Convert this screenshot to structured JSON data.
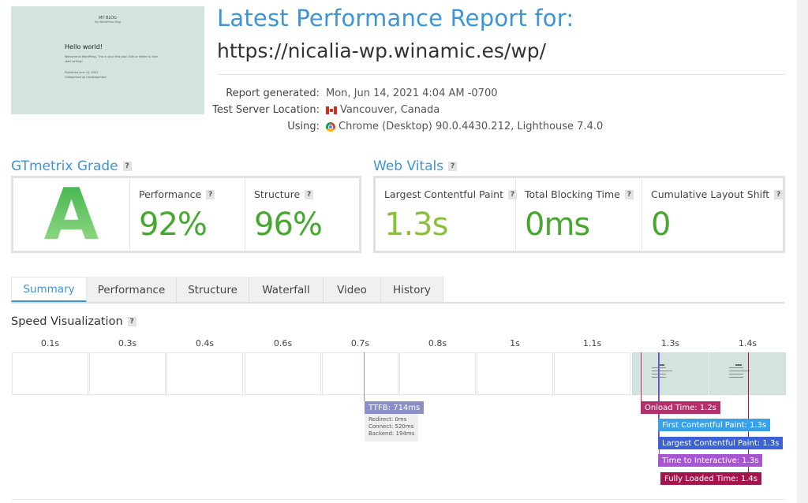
{
  "thumbnail": {
    "blog_title": "MY BLOG",
    "blog_tagline": "My WordPress Blog",
    "post_title": "Hello world!",
    "post_line_1": "Welcome to WordPress. This is your first post. Edit or delete it, then",
    "post_line_2": "start writing!",
    "post_meta_1": "Published June 14, 2021",
    "post_meta_2": "Categorized as Uncategorized"
  },
  "header": {
    "title": "Latest Performance Report for:",
    "url": "https://nicalia-wp.winamic.es/wp/"
  },
  "report": {
    "generated_label": "Report generated:",
    "generated_value": "Mon, Jun 14, 2021 4:04 AM -0700",
    "location_label": "Test Server Location:",
    "location_value": "Vancouver, Canada",
    "location_icon": "canada-flag-icon",
    "using_label": "Using:",
    "using_value": "Chrome (Desktop) 90.0.4430.212, Lighthouse 7.4.0",
    "using_icon": "chrome-icon"
  },
  "grade": {
    "section_title": "GTmetrix Grade",
    "letter": "A",
    "performance_label": "Performance",
    "performance_value": "92%",
    "structure_label": "Structure",
    "structure_value": "96%",
    "value_color": "#46a82f"
  },
  "vitals": {
    "section_title": "Web Vitals",
    "lcp_label": "Largest Contentful Paint",
    "lcp_value": "1.3s",
    "lcp_color": "#8cc03b",
    "tbt_label": "Total Blocking Time",
    "tbt_value": "0ms",
    "tbt_color": "#46a82f",
    "cls_label": "Cumulative Layout Shift",
    "cls_value": "0",
    "cls_color": "#46a82f"
  },
  "help_mark": "?",
  "tabs": [
    {
      "label": "Summary",
      "active": true
    },
    {
      "label": "Performance",
      "active": false
    },
    {
      "label": "Structure",
      "active": false
    },
    {
      "label": "Waterfall",
      "active": false
    },
    {
      "label": "Video",
      "active": false
    },
    {
      "label": "History",
      "active": false
    }
  ],
  "speed_viz": {
    "title": "Speed Visualization",
    "ticks": [
      "0.1s",
      "0.3s",
      "0.4s",
      "0.6s",
      "0.7s",
      "0.8s",
      "1s",
      "1.1s",
      "1.3s",
      "1.4s"
    ],
    "frames_with_content": [
      8,
      9
    ],
    "ttfb": {
      "label": "TTFB: 714ms",
      "redirect": "Redirect: 0ms",
      "connect": "Connect: 520ms",
      "backend": "Backend: 194ms",
      "color": "#8a8fc4"
    },
    "markers": [
      {
        "label": "Onload Time: 1.2s",
        "color": "#b3316b"
      },
      {
        "label": "First Contentful Paint: 1.3s",
        "color": "#3aa0e8"
      },
      {
        "label": "Largest Contentful Paint: 1.3s",
        "color": "#3c63d6"
      },
      {
        "label": "Time to Interactive: 1.3s",
        "color": "#a855d4"
      },
      {
        "label": "Fully Loaded Time: 1.4s",
        "color": "#a3164d"
      }
    ]
  }
}
